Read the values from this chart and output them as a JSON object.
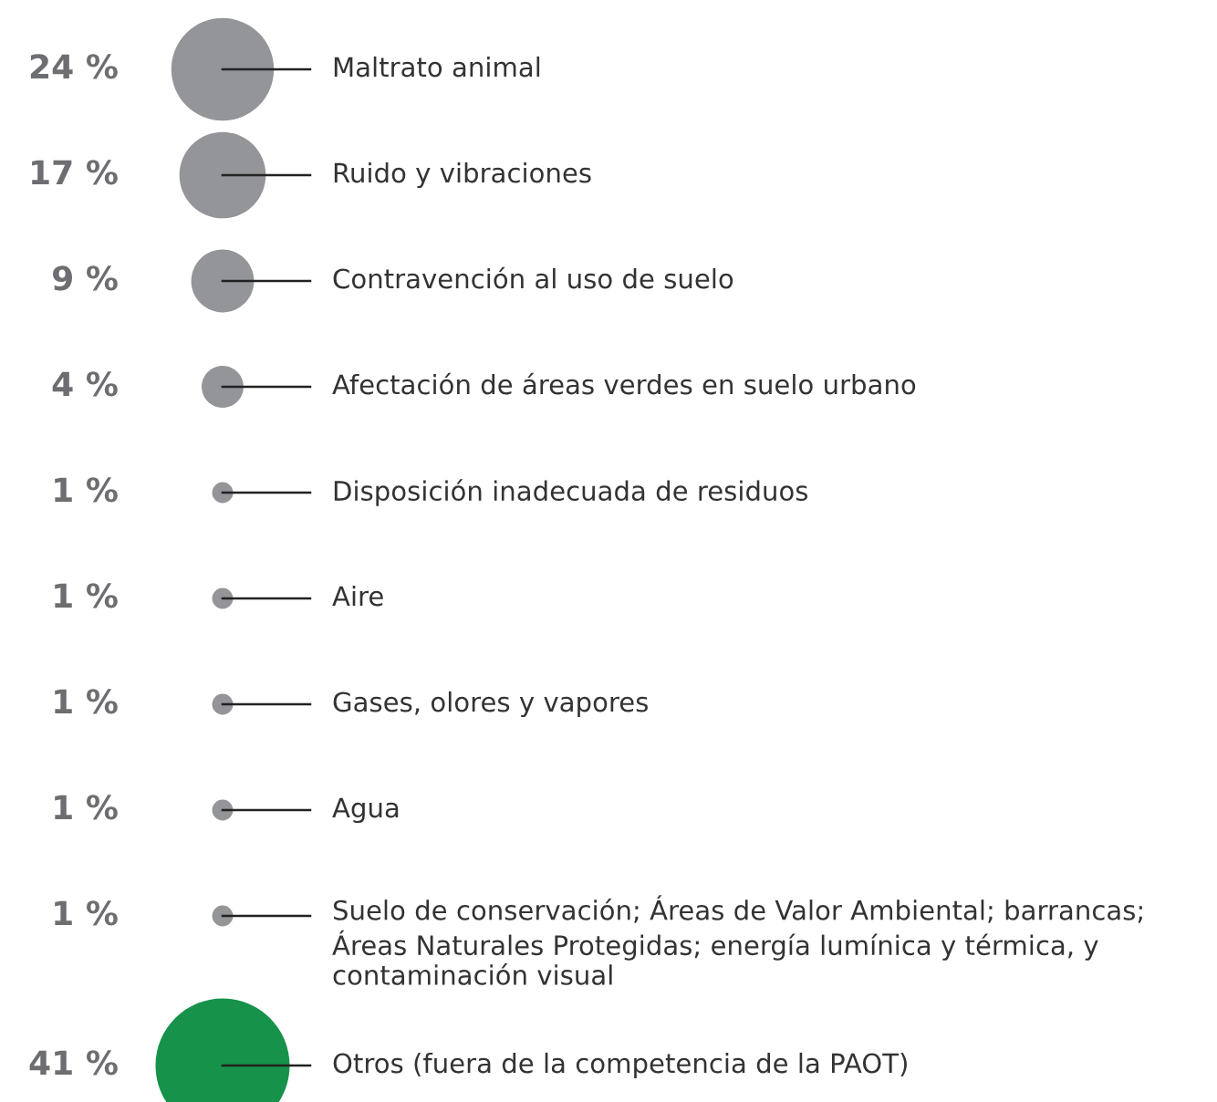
{
  "chart_data": {
    "type": "other",
    "categories": [
      "Maltrato animal",
      "Ruido y vibraciones",
      "Contravención al uso de suelo",
      "Afectación de áreas verdes en suelo urbano",
      "Disposición inadecuada de residuos",
      "Aire",
      "Gases, olores y vapores",
      "Agua",
      "Suelo de conservación; Áreas de Valor Ambiental; barrancas; Áreas Naturales Protegidas; energía lumínica y térmica, y contaminación visual",
      "Otros (fuera de la competencia de la PAOT)"
    ],
    "values": [
      24,
      17,
      9,
      4,
      1,
      1,
      1,
      1,
      1,
      41
    ],
    "value_labels": [
      "24 %",
      "17 %",
      "9 %",
      "4 %",
      "1 %",
      "1 %",
      "1 %",
      "1 %",
      "1 %",
      "41 %"
    ],
    "colors": [
      "#939598",
      "#939598",
      "#939598",
      "#939598",
      "#939598",
      "#939598",
      "#939598",
      "#939598",
      "#939598",
      "#16924a"
    ]
  }
}
